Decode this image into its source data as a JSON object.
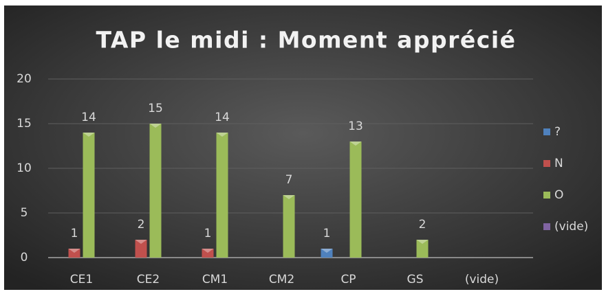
{
  "chart_data": {
    "type": "bar",
    "title": "TAP le midi : Moment apprécié",
    "categories": [
      "CE1",
      "CE2",
      "CM1",
      "CM2",
      "CP",
      "GS",
      "(vide)"
    ],
    "series": [
      {
        "name": "?",
        "color": "#4f81bd",
        "values": [
          null,
          null,
          null,
          null,
          1,
          null,
          null
        ]
      },
      {
        "name": "N",
        "color": "#c0504d",
        "values": [
          1,
          2,
          1,
          null,
          null,
          null,
          null
        ]
      },
      {
        "name": "O",
        "color": "#9bbb59",
        "values": [
          14,
          15,
          14,
          7,
          13,
          2,
          null
        ]
      },
      {
        "name": "(vide)",
        "color": "#8064a2",
        "values": [
          null,
          null,
          null,
          null,
          null,
          null,
          null
        ]
      }
    ],
    "ylim": [
      0,
      20
    ],
    "yticks": [
      0,
      5,
      10,
      15,
      20
    ],
    "grid": true,
    "legend": "right"
  }
}
